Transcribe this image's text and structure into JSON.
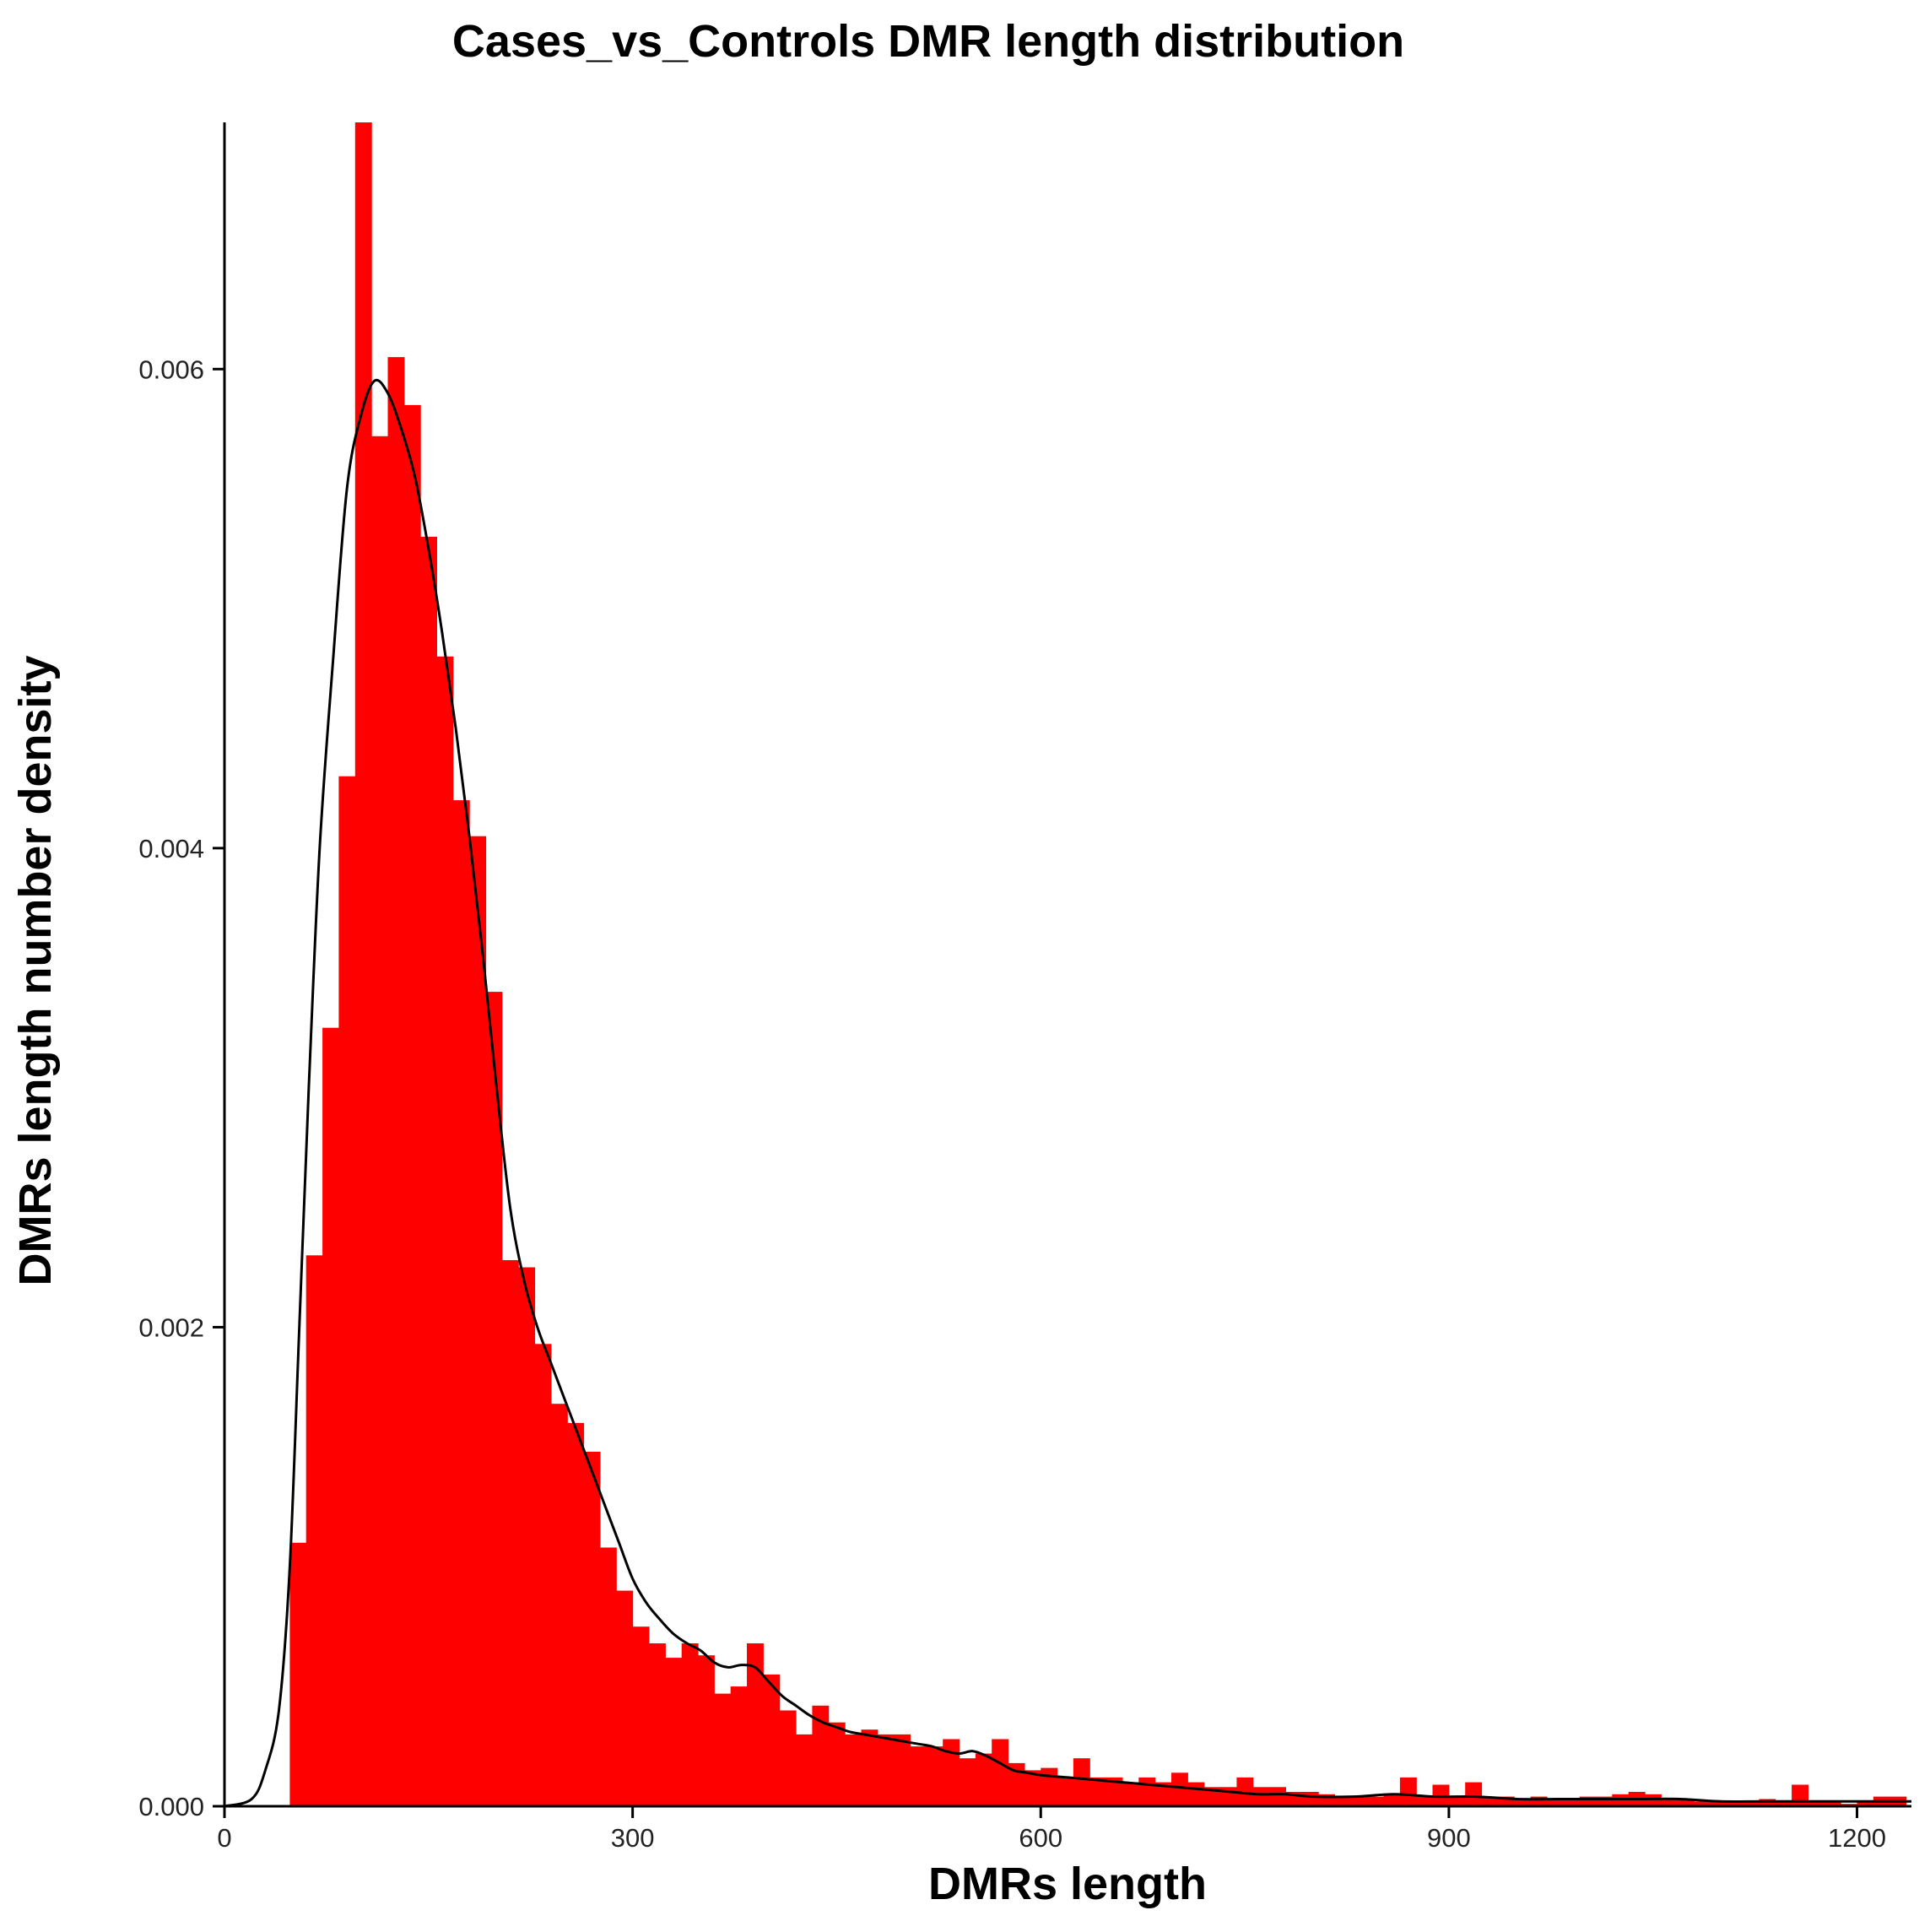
{
  "chart_data": {
    "type": "bar",
    "title": "Cases_vs_Controls DMR length distribution",
    "xlabel": "DMRs length",
    "ylabel": "DMRs length number density",
    "xlim": [
      0,
      1240
    ],
    "ylim": [
      0,
      0.00703
    ],
    "x_ticks": [
      {
        "value": 0,
        "label": "0"
      },
      {
        "value": 300,
        "label": "300"
      },
      {
        "value": 600,
        "label": "600"
      },
      {
        "value": 900,
        "label": "900"
      },
      {
        "value": 1200,
        "label": "1200"
      }
    ],
    "y_ticks": [
      {
        "value": 0.0,
        "label": "0.000"
      },
      {
        "value": 0.002,
        "label": "0.002"
      },
      {
        "value": 0.004,
        "label": "0.004"
      },
      {
        "value": 0.006,
        "label": "0.006"
      }
    ],
    "grid": false,
    "bin_width": 12,
    "bar_color": "#ff0000",
    "curve_color": "#000000",
    "bins_start": [
      48,
      60,
      72,
      84,
      96,
      108,
      120,
      132,
      144,
      156,
      168,
      180,
      192,
      204,
      216,
      228,
      240,
      252,
      264,
      276,
      288,
      300,
      312,
      324,
      336,
      348,
      360,
      372,
      384,
      396,
      408,
      420,
      432,
      444,
      456,
      468,
      480,
      492,
      504,
      516,
      528,
      540,
      552,
      564,
      576,
      588,
      600,
      612,
      624,
      636,
      648,
      660,
      672,
      684,
      696,
      708,
      720,
      732,
      744,
      756,
      768,
      780,
      792,
      804,
      816,
      828,
      840,
      852,
      864,
      876,
      888,
      900,
      912,
      924,
      936,
      948,
      960,
      972,
      984,
      996,
      1008,
      1020,
      1032,
      1044,
      1056,
      1068,
      1080,
      1092,
      1104,
      1116,
      1128,
      1140,
      1152,
      1164,
      1176,
      1188,
      1200,
      1212,
      1224
    ],
    "densities": [
      0.0011,
      0.0023,
      0.00325,
      0.0043,
      0.00705,
      0.00572,
      0.00605,
      0.00585,
      0.0053,
      0.0048,
      0.0042,
      0.00405,
      0.0034,
      0.00228,
      0.00225,
      0.00193,
      0.00168,
      0.0016,
      0.00148,
      0.00108,
      0.0009,
      0.00075,
      0.00068,
      0.00062,
      0.00068,
      0.00063,
      0.00047,
      0.0005,
      0.00068,
      0.00055,
      0.0004,
      0.0003,
      0.00042,
      0.00035,
      0.0003,
      0.00032,
      0.0003,
      0.0003,
      0.00025,
      0.00025,
      0.00028,
      0.0002,
      0.00022,
      0.00028,
      0.00018,
      0.00015,
      0.00016,
      0.00012,
      0.0002,
      0.00012,
      0.00012,
      0.0001,
      0.00012,
      0.0001,
      0.00014,
      0.0001,
      8e-05,
      8e-05,
      0.00012,
      8e-05,
      8e-05,
      6e-05,
      6e-05,
      5e-05,
      4e-05,
      4e-05,
      4e-05,
      5e-05,
      0.00012,
      4e-05,
      9e-05,
      4e-05,
      0.0001,
      4e-05,
      4e-05,
      3e-05,
      4e-05,
      3e-05,
      3e-05,
      4e-05,
      4e-05,
      5e-05,
      6e-05,
      5e-05,
      3e-05,
      3e-05,
      2e-05,
      2e-05,
      2e-05,
      2e-05,
      3e-05,
      2e-05,
      9e-05,
      2e-05,
      2e-05,
      1e-05,
      2e-05,
      4e-05,
      4e-05
    ],
    "density_curve": {
      "x": [
        0,
        20,
        30,
        40,
        48,
        55,
        62,
        70,
        80,
        90,
        100,
        110,
        120,
        130,
        140,
        150,
        160,
        170,
        180,
        190,
        200,
        210,
        220,
        230,
        240,
        250,
        260,
        270,
        280,
        290,
        300,
        310,
        320,
        330,
        340,
        350,
        360,
        370,
        380,
        390,
        400,
        410,
        420,
        430,
        440,
        450,
        460,
        470,
        480,
        490,
        500,
        510,
        520,
        530,
        540,
        550,
        560,
        570,
        580,
        590,
        600,
        620,
        640,
        660,
        680,
        700,
        720,
        740,
        760,
        780,
        800,
        830,
        860,
        890,
        920,
        950,
        980,
        1010,
        1040,
        1070,
        1100,
        1130,
        1160,
        1190,
        1220,
        1240
      ],
      "y": [
        0.0,
        3e-05,
        0.00015,
        0.0004,
        0.001,
        0.002,
        0.003,
        0.004,
        0.0048,
        0.0055,
        0.0058,
        0.00595,
        0.0059,
        0.00575,
        0.00555,
        0.00525,
        0.0049,
        0.0045,
        0.00405,
        0.00355,
        0.003,
        0.0025,
        0.0022,
        0.002,
        0.00185,
        0.0017,
        0.00155,
        0.0014,
        0.00125,
        0.0011,
        0.00095,
        0.00085,
        0.00078,
        0.00072,
        0.00068,
        0.00065,
        0.0006,
        0.00058,
        0.00059,
        0.00058,
        0.00052,
        0.00046,
        0.00042,
        0.00038,
        0.00035,
        0.00033,
        0.00031,
        0.0003,
        0.00029,
        0.00028,
        0.00027,
        0.00026,
        0.00025,
        0.00023,
        0.00022,
        0.00023,
        0.00021,
        0.00018,
        0.00015,
        0.00014,
        0.00013,
        0.00012,
        0.00011,
        0.0001,
        9e-05,
        8e-05,
        7e-05,
        6e-05,
        5e-05,
        5e-05,
        4e-05,
        4e-05,
        5e-05,
        4e-05,
        4e-05,
        3e-05,
        3e-05,
        3e-05,
        3e-05,
        3e-05,
        2e-05,
        2e-05,
        2e-05,
        2e-05,
        2e-05,
        2e-05
      ]
    }
  }
}
